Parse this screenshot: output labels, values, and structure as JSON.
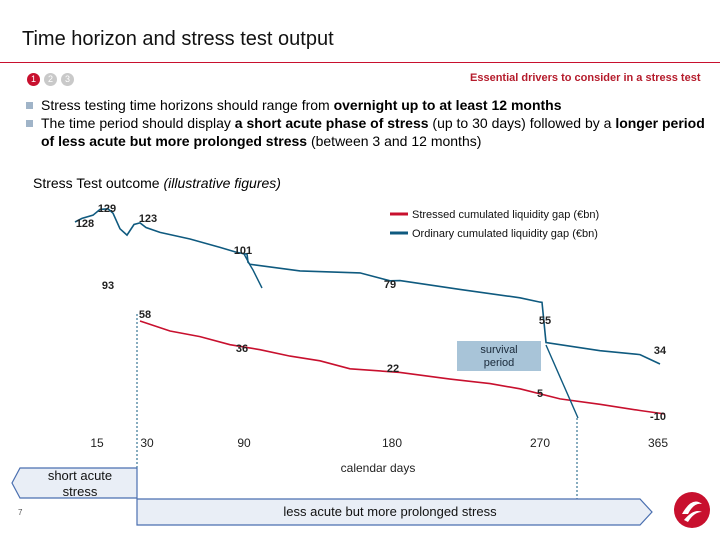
{
  "page": {
    "title": "Time horizon and stress test output",
    "steps": [
      "1",
      "2",
      "3"
    ],
    "drivers_link": "Essential drivers to consider in a stress test",
    "bullets": [
      {
        "pre": "Stress testing time horizons should range from ",
        "bold": "overnight up to at least 12 months",
        "post": ""
      },
      {
        "pre": "The time period should display ",
        "bold": "a short acute phase of stress",
        "post": " (up to 30 days) followed by a ",
        "bold2": "longer period of less acute but more prolonged stress",
        "post2": " (between 3 and 12 months)"
      }
    ],
    "outcome_title": "Stress Test outcome",
    "outcome_note": "(illustrative figures)",
    "page_number": "7"
  },
  "colors": {
    "red": "#c8102e",
    "blue": "#0f5a7f",
    "shaded_box": "#a8c4d8",
    "phase_arrow": "#e9eef6",
    "phase_border": "#4a6fb0",
    "accent": "#c8102e"
  },
  "chart_data": {
    "type": "line",
    "xlabel": "calendar days",
    "ylabel": "",
    "x_ticks": [
      "15",
      "30",
      "90",
      "180",
      "270",
      "365"
    ],
    "legend_position": "top-right",
    "series": [
      {
        "name": "Stressed cumulated liquidity gap (€bn)",
        "color": "red",
        "points": [
          [
            30,
            58
          ],
          [
            90,
            36
          ],
          [
            180,
            22
          ],
          [
            270,
            5
          ],
          [
            365,
            -10
          ]
        ]
      },
      {
        "name": "Ordinary cumulated liquidity gap (€bn)",
        "color": "blue",
        "points": [
          [
            1,
            128
          ],
          [
            10,
            129
          ],
          [
            15,
            123
          ],
          [
            90,
            101
          ],
          [
            15,
            93
          ],
          [
            30,
            79
          ],
          [
            270,
            55
          ],
          [
            365,
            34
          ]
        ]
      }
    ],
    "value_labels": [
      "129",
      "123",
      "128",
      "101",
      "93",
      "79",
      "58",
      "55",
      "36",
      "22",
      "34",
      "5",
      "-10"
    ],
    "annotations": {
      "survival_box": "survival period",
      "short_phase": "short acute stress",
      "long_phase": "less acute but more prolonged stress"
    }
  }
}
